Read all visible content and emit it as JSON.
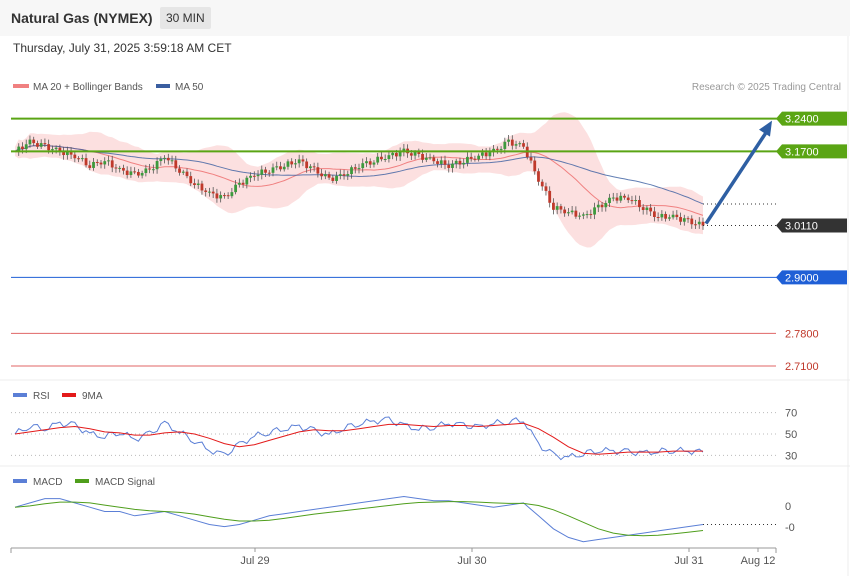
{
  "header": {
    "title": "Natural Gas (NYMEX)",
    "timeframe": "30 MIN",
    "datetime": "Thursday, July 31, 2025 3:59:18 AM CET"
  },
  "colors": {
    "bollinger_fill": "#fbd3d3",
    "ma20": "#f08080",
    "ma50": "#3a5ea0",
    "resistance": "#5aa514",
    "pivot": "#1f5fd6",
    "support": "#e06666",
    "last_price": "#333333",
    "rsi": "#5b7fd6",
    "rsi_ma": "#e31a1a",
    "macd": "#5b7fd6",
    "macd_signal": "#4f9e1c",
    "arrow": "#2e5fa3"
  },
  "chart_data": [
    {
      "type": "candlestick",
      "legend": [
        {
          "name": "MA 20 + Bollinger Bands",
          "color": "#f08080"
        },
        {
          "name": "MA 50",
          "color": "#3a5ea0"
        }
      ],
      "watermark": "Research © 2025 Trading Central",
      "x_ticks": [
        "Jul 29",
        "Jul 30",
        "Jul 31",
        "Aug 12"
      ],
      "ylim": [
        2.68,
        3.28
      ],
      "levels": [
        {
          "value": 3.24,
          "label": "3.2400",
          "kind": "resistance"
        },
        {
          "value": 3.17,
          "label": "3.1700",
          "kind": "resistance"
        },
        {
          "value": 3.011,
          "label": "3.0110",
          "kind": "last"
        },
        {
          "value": 2.9,
          "label": "2.9000",
          "kind": "pivot"
        },
        {
          "value": 2.78,
          "label": "2.7800",
          "kind": "support"
        },
        {
          "value": 2.71,
          "label": "2.7100",
          "kind": "support"
        }
      ],
      "close_path": [
        3.17,
        3.19,
        3.18,
        3.17,
        3.16,
        3.14,
        3.15,
        3.13,
        3.12,
        3.13,
        3.16,
        3.13,
        3.1,
        3.08,
        3.07,
        3.1,
        3.12,
        3.13,
        3.14,
        3.15,
        3.13,
        3.11,
        3.12,
        3.14,
        3.15,
        3.16,
        3.17,
        3.16,
        3.15,
        3.14,
        3.15,
        3.16,
        3.17,
        3.19,
        3.18,
        3.11,
        3.05,
        3.04,
        3.03,
        3.05,
        3.07,
        3.07,
        3.05,
        3.03,
        3.03,
        3.02,
        3.011
      ],
      "forecast": {
        "from": 3.011,
        "to": 3.24
      }
    },
    {
      "type": "line",
      "name": "RSI",
      "legend": [
        {
          "name": "RSI",
          "color": "#5b7fd6"
        },
        {
          "name": "9MA",
          "color": "#e31a1a"
        }
      ],
      "ylim": [
        20,
        80
      ],
      "y_ticks": [
        70,
        50,
        30
      ],
      "rsi": [
        50,
        58,
        55,
        60,
        58,
        50,
        48,
        52,
        45,
        50,
        60,
        52,
        44,
        35,
        30,
        40,
        48,
        52,
        55,
        57,
        53,
        49,
        56,
        60,
        62,
        63,
        58,
        55,
        57,
        60,
        58,
        56,
        60,
        62,
        63,
        40,
        30,
        28,
        32,
        35,
        34,
        33,
        32,
        34,
        35,
        34,
        33
      ],
      "rsi_ma": [
        50,
        52,
        54,
        56,
        57,
        55,
        52,
        51,
        49,
        49,
        51,
        52,
        50,
        46,
        41,
        38,
        40,
        44,
        48,
        52,
        54,
        53,
        53,
        55,
        57,
        59,
        59,
        58,
        57,
        58,
        58,
        57,
        58,
        59,
        60,
        55,
        47,
        38,
        32,
        31,
        32,
        33,
        33,
        33,
        34,
        34,
        34
      ]
    },
    {
      "type": "line",
      "name": "MACD",
      "legend": [
        {
          "name": "MACD",
          "color": "#5b7fd6"
        },
        {
          "name": "MACD Signal",
          "color": "#4f9e1c"
        }
      ],
      "y_ticks": [
        "0",
        "-0"
      ],
      "macd": [
        0.0,
        0.01,
        0.02,
        0.02,
        0.01,
        0.0,
        -0.01,
        -0.01,
        -0.02,
        -0.015,
        -0.01,
        -0.02,
        -0.03,
        -0.04,
        -0.045,
        -0.04,
        -0.03,
        -0.02,
        -0.015,
        -0.01,
        -0.005,
        0.0,
        0.005,
        0.01,
        0.015,
        0.02,
        0.025,
        0.02,
        0.015,
        0.015,
        0.01,
        0.005,
        0.0,
        0.005,
        0.01,
        -0.02,
        -0.05,
        -0.07,
        -0.08,
        -0.075,
        -0.07,
        -0.065,
        -0.06,
        -0.055,
        -0.05,
        -0.045,
        -0.04
      ],
      "signal": [
        0.0,
        0.003,
        0.008,
        0.012,
        0.012,
        0.01,
        0.005,
        0.0,
        -0.005,
        -0.008,
        -0.01,
        -0.012,
        -0.016,
        -0.022,
        -0.028,
        -0.032,
        -0.032,
        -0.03,
        -0.026,
        -0.021,
        -0.016,
        -0.012,
        -0.008,
        -0.004,
        0.0,
        0.004,
        0.008,
        0.011,
        0.012,
        0.013,
        0.013,
        0.012,
        0.01,
        0.009,
        0.009,
        0.004,
        -0.006,
        -0.02,
        -0.035,
        -0.05,
        -0.06,
        -0.065,
        -0.066,
        -0.065,
        -0.062,
        -0.058,
        -0.054
      ]
    }
  ]
}
